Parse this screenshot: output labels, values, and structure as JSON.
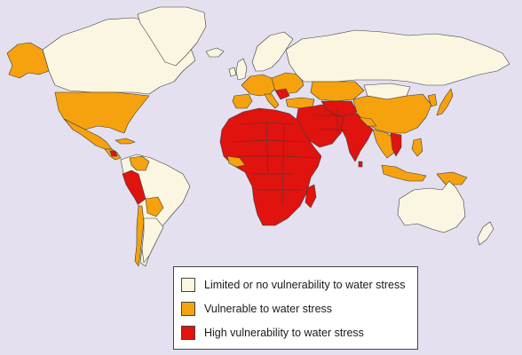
{
  "colors": {
    "background": "#e4e0f0",
    "limited": "#fbf6e2",
    "vulnerable": "#f6a20e",
    "high": "#e0130f",
    "outline": "#3a3a3a"
  },
  "legend": {
    "items": [
      {
        "key": "limited",
        "label": "Limited or no vulnerability to water stress"
      },
      {
        "key": "vulnerable",
        "label": "Vulnerable to water stress"
      },
      {
        "key": "high",
        "label": "High vulnerability to water stress"
      }
    ]
  },
  "regions": [
    {
      "name": "alaska",
      "category": "vulnerable"
    },
    {
      "name": "canada",
      "category": "limited"
    },
    {
      "name": "greenland",
      "category": "limited"
    },
    {
      "name": "usa",
      "category": "vulnerable"
    },
    {
      "name": "mexico",
      "category": "vulnerable"
    },
    {
      "name": "central-america",
      "category": "vulnerable"
    },
    {
      "name": "nicaragua",
      "category": "high"
    },
    {
      "name": "caribbean",
      "category": "vulnerable"
    },
    {
      "name": "south-america",
      "category": "limited"
    },
    {
      "name": "venezuela",
      "category": "vulnerable"
    },
    {
      "name": "peru",
      "category": "high"
    },
    {
      "name": "bolivia",
      "category": "vulnerable"
    },
    {
      "name": "chile",
      "category": "vulnerable"
    },
    {
      "name": "argentina",
      "category": "limited"
    },
    {
      "name": "iceland",
      "category": "limited"
    },
    {
      "name": "uk",
      "category": "limited"
    },
    {
      "name": "ireland",
      "category": "limited"
    },
    {
      "name": "scandinavia",
      "category": "limited"
    },
    {
      "name": "western-europe",
      "category": "vulnerable"
    },
    {
      "name": "iberia",
      "category": "vulnerable"
    },
    {
      "name": "italy",
      "category": "vulnerable"
    },
    {
      "name": "eastern-europe",
      "category": "vulnerable"
    },
    {
      "name": "romania",
      "category": "high"
    },
    {
      "name": "russia",
      "category": "limited"
    },
    {
      "name": "kazakhstan",
      "category": "vulnerable"
    },
    {
      "name": "mongolia",
      "category": "limited"
    },
    {
      "name": "china",
      "category": "vulnerable"
    },
    {
      "name": "korea",
      "category": "vulnerable"
    },
    {
      "name": "japan",
      "category": "vulnerable"
    },
    {
      "name": "turkey",
      "category": "vulnerable"
    },
    {
      "name": "middle-east",
      "category": "high"
    },
    {
      "name": "central-asia",
      "category": "high"
    },
    {
      "name": "india",
      "category": "high"
    },
    {
      "name": "nepal",
      "category": "vulnerable"
    },
    {
      "name": "sri-lanka",
      "category": "high"
    },
    {
      "name": "mainland-se-asia",
      "category": "vulnerable"
    },
    {
      "name": "vietnam",
      "category": "high"
    },
    {
      "name": "philippines",
      "category": "vulnerable"
    },
    {
      "name": "indonesia",
      "category": "vulnerable"
    },
    {
      "name": "new-guinea",
      "category": "vulnerable"
    },
    {
      "name": "australia",
      "category": "limited"
    },
    {
      "name": "new-zealand",
      "category": "limited"
    },
    {
      "name": "africa",
      "category": "high"
    },
    {
      "name": "madagascar",
      "category": "high"
    },
    {
      "name": "west-africa-coast",
      "category": "vulnerable"
    }
  ]
}
